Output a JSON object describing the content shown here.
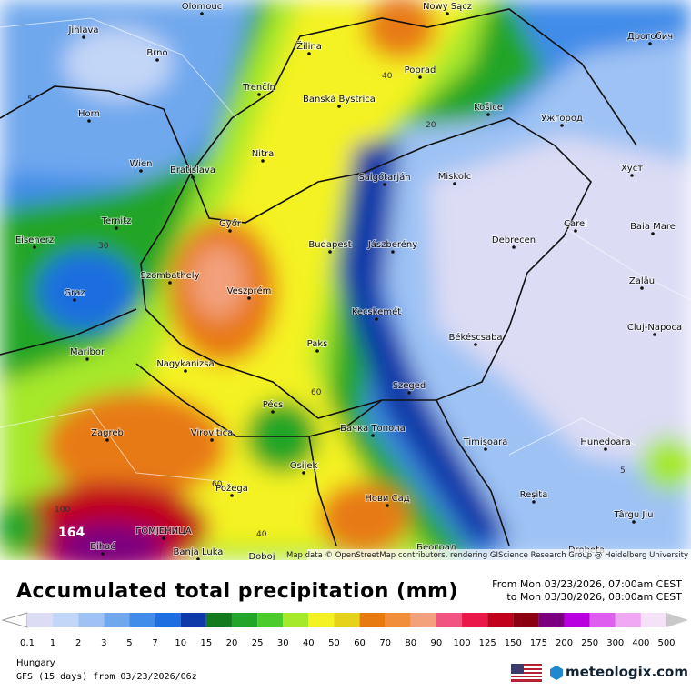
{
  "map": {
    "cities": [
      "Olomouc",
      "Nowy Sącz",
      "Jihlava",
      "Brno",
      "Žilina",
      "Дрогобич",
      "Poprad",
      "Trenčín",
      "Banská Bystrica",
      "Horn",
      "Košice",
      "Ужгород",
      "Nitra",
      "Wien",
      "Bratislava",
      "Salgótarján",
      "Miskolc",
      "Хуст",
      "Ternitz",
      "Győr",
      "Budapest",
      "Jászberény",
      "Debrecen",
      "Carei",
      "Baia Mare",
      "Eisenerz",
      "Szombathely",
      "Graz",
      "Veszprém",
      "Zalău",
      "Kecskemét",
      "Cluj-Napoca",
      "Békéscsaba",
      "Paks",
      "Maribor",
      "Nagykanizsa",
      "Szeged",
      "Pécs",
      "Zagreb",
      "Virovitica",
      "Бачка Топола",
      "Timișoara",
      "Hunedoara",
      "Osijek",
      "Požega",
      "Нови Сад",
      "Reșita",
      "Târgu Jiu",
      "ГОМЈЕНИЦА",
      "Bihać",
      "Banja Luka",
      "Doboj",
      "Београд",
      "Drobeta"
    ],
    "isolines": [
      "40",
      "20",
      "5",
      "30",
      "60",
      "60",
      "40",
      "100",
      "5"
    ],
    "max_label": "164",
    "attribution": "Map data © OpenStreetMap contributors, rendering GIScience Research Group @ Heidelberg University"
  },
  "footer": {
    "title": "Accumulated total precipitation (mm)",
    "from": "From Mon 03/23/2026, 07:00am CEST",
    "to": "to Mon 03/30/2026, 08:00am CEST",
    "legend": [
      {
        "value": 0.1,
        "color": "#dcdcf4"
      },
      {
        "value": 1,
        "color": "#c2d6f7"
      },
      {
        "value": 2,
        "color": "#9ec2f4"
      },
      {
        "value": 3,
        "color": "#70a8ee"
      },
      {
        "value": 5,
        "color": "#418ce8"
      },
      {
        "value": 7,
        "color": "#1d6ee0"
      },
      {
        "value": 10,
        "color": "#0d3aa8"
      },
      {
        "value": 15,
        "color": "#137a1e"
      },
      {
        "value": 20,
        "color": "#22a528"
      },
      {
        "value": 25,
        "color": "#4ccc2c"
      },
      {
        "value": 30,
        "color": "#a6e82a"
      },
      {
        "value": 40,
        "color": "#f4f222"
      },
      {
        "value": 50,
        "color": "#e6d21a"
      },
      {
        "value": 60,
        "color": "#e87a12"
      },
      {
        "value": 70,
        "color": "#f08e3c"
      },
      {
        "value": 80,
        "color": "#f3a07c"
      },
      {
        "value": 90,
        "color": "#f25482"
      },
      {
        "value": 100,
        "color": "#ea1848"
      },
      {
        "value": 125,
        "color": "#c0001c"
      },
      {
        "value": 150,
        "color": "#8a0010"
      },
      {
        "value": 175,
        "color": "#7a0080"
      },
      {
        "value": 200,
        "color": "#b800e0"
      },
      {
        "value": 250,
        "color": "#de5ef0"
      },
      {
        "value": 300,
        "color": "#f0a8f4"
      },
      {
        "value": 400,
        "color": "#f6e2f8"
      },
      {
        "value": 500,
        "color": "#c8c8c8"
      }
    ],
    "region": "Hungary",
    "model": "GFS (15 days) from 03/23/2026/06z",
    "brand": "meteologix.com"
  }
}
